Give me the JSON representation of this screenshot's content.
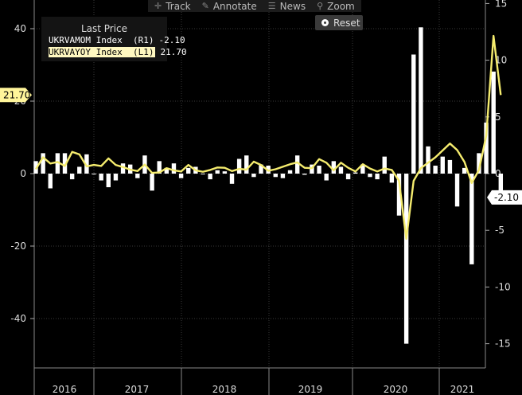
{
  "toolbar": {
    "track": "Track",
    "annotate": "Annotate",
    "news": "News",
    "zoom": "Zoom",
    "reset": "Reset"
  },
  "legend": {
    "title": "Last Price",
    "items": [
      {
        "name": "UKRVAMOM Index  (R1)",
        "value": "-2.10",
        "color": "#ffffff",
        "type": "bar"
      },
      {
        "name": "UKRVAYOY Index  (L1)",
        "value": "21.70",
        "color": "#f5ec6e",
        "type": "line"
      }
    ]
  },
  "last_labels": {
    "left": "21.70",
    "right": "-2.10"
  },
  "chart_data": {
    "type": "bar",
    "x_labels": [
      "2016",
      "2017",
      "2018",
      "2019",
      "2020",
      "2021"
    ],
    "left_axis": {
      "ticks": [
        40,
        20,
        0,
        -20,
        -40
      ],
      "range": [
        -53,
        48
      ]
    },
    "right_axis": {
      "ticks": [
        15,
        10,
        5,
        0,
        -5,
        -10,
        -15
      ],
      "range": [
        -17,
        15
      ]
    },
    "series": [
      {
        "name": "UKRVAMOM Index",
        "axis": "right",
        "values": [
          1.1,
          1.8,
          -1.3,
          1.8,
          1.8,
          -0.5,
          0.6,
          1.7,
          0,
          -0.6,
          -1.2,
          -0.6,
          0.9,
          0.8,
          -0.4,
          1.6,
          -1.5,
          1.1,
          0.5,
          0.9,
          -0.4,
          0.5,
          0.6,
          0,
          -0.5,
          0.3,
          0.2,
          -0.9,
          1.3,
          1.6,
          -0.3,
          0.8,
          0.7,
          -0.3,
          -0.4,
          0.3,
          1.6,
          -0.1,
          0.8,
          0.7,
          -0.6,
          1.1,
          0.6,
          -0.5,
          0.1,
          0.8,
          -0.3,
          -0.5,
          1.5,
          -0.8,
          -3.7,
          -15.0,
          10.5,
          12.9,
          2.4,
          0.7,
          1.5,
          1.2,
          -2.9,
          0.5,
          -8.0,
          1.8,
          4.5,
          9.0,
          -2.1
        ],
        "color": "#ffffff"
      },
      {
        "name": "UKRVAYOY Index",
        "axis": "left",
        "values": [
          1.2,
          4.5,
          2.8,
          3.2,
          2.1,
          6.0,
          5.3,
          2.0,
          2.4,
          2.1,
          4.2,
          2.4,
          1.8,
          1.1,
          0.7,
          2.5,
          0.2,
          0.3,
          1.5,
          0.9,
          0.6,
          2.4,
          0.9,
          0.5,
          1.0,
          1.7,
          1.6,
          0.7,
          1.3,
          1.1,
          3.3,
          2.4,
          0.8,
          1.2,
          1.9,
          2.6,
          3.1,
          1.6,
          1.5,
          4.0,
          3.0,
          0.9,
          3.0,
          1.6,
          0.6,
          2.6,
          1.4,
          0.6,
          1.4,
          1.0,
          -2.0,
          -18.0,
          -2.0,
          1.5,
          3.0,
          4.5,
          6.4,
          8.3,
          6.5,
          3.2,
          -2.6,
          1.0,
          10.5,
          38.0,
          21.7
        ],
        "color": "#f5ec6e"
      }
    ]
  }
}
